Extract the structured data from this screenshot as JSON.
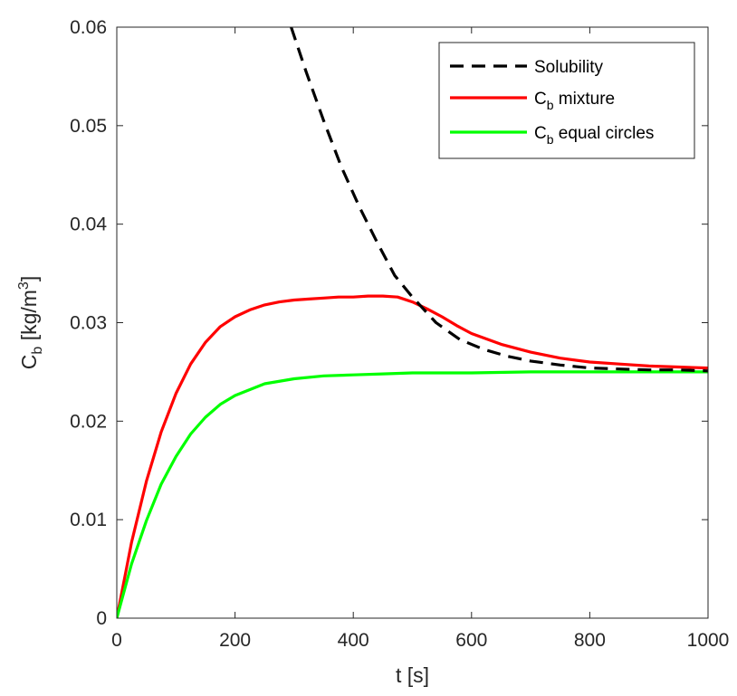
{
  "chart_data": {
    "type": "line",
    "xlabel": "t [s]",
    "ylabel": {
      "main": "C",
      "sub": "b",
      "units_prefix": " [kg/m",
      "sup": "3",
      "units_suffix": "]"
    },
    "xlim": [
      0,
      1000
    ],
    "ylim": [
      0,
      0.06
    ],
    "x_ticks": [
      0,
      200,
      400,
      600,
      800,
      1000
    ],
    "x_tick_labels": [
      "0",
      "200",
      "400",
      "600",
      "800",
      "1000"
    ],
    "y_ticks": [
      0,
      0.01,
      0.02,
      0.03,
      0.04,
      0.05,
      0.06
    ],
    "y_tick_labels": [
      "0",
      "0.01",
      "0.02",
      "0.03",
      "0.04",
      "0.05",
      "0.06"
    ],
    "grid": false,
    "legend_position": "top-right",
    "series": [
      {
        "name": "Solubility",
        "legend": {
          "main": "Solubility",
          "sub": "",
          "rest": ""
        },
        "color": "#000000",
        "dash": "dashed",
        "x": [
          295,
          320,
          350,
          380,
          410,
          440,
          470,
          500,
          540,
          580,
          620,
          660,
          700,
          750,
          800,
          850,
          900,
          950,
          1000
        ],
        "y": [
          0.06,
          0.0555,
          0.0505,
          0.0458,
          0.0418,
          0.0382,
          0.0348,
          0.0326,
          0.03,
          0.0283,
          0.0273,
          0.0266,
          0.0261,
          0.0257,
          0.0254,
          0.0253,
          0.0252,
          0.0252,
          0.0251
        ]
      },
      {
        "name": "C_b mixture",
        "legend": {
          "main": "C",
          "sub": "b",
          "rest": " mixture"
        },
        "color": "#ff0000",
        "dash": "solid",
        "x": [
          0,
          25,
          50,
          75,
          100,
          125,
          150,
          175,
          200,
          225,
          250,
          275,
          300,
          325,
          350,
          375,
          400,
          425,
          450,
          475,
          500,
          525,
          550,
          575,
          600,
          650,
          700,
          750,
          800,
          850,
          900,
          950,
          1000
        ],
        "y": [
          0,
          0.0077,
          0.0139,
          0.0189,
          0.0228,
          0.0258,
          0.028,
          0.0296,
          0.0306,
          0.0313,
          0.0318,
          0.0321,
          0.0323,
          0.0324,
          0.0325,
          0.0326,
          0.0326,
          0.0327,
          0.0327,
          0.0326,
          0.0321,
          0.0314,
          0.0306,
          0.0297,
          0.0289,
          0.0278,
          0.027,
          0.0264,
          0.026,
          0.0258,
          0.0256,
          0.0255,
          0.0254
        ]
      },
      {
        "name": "C_b equal circles",
        "legend": {
          "main": "C",
          "sub": "b",
          "rest": " equal circles"
        },
        "color": "#00ff00",
        "dash": "solid",
        "x": [
          0,
          25,
          50,
          75,
          100,
          125,
          150,
          175,
          200,
          250,
          300,
          350,
          400,
          450,
          500,
          550,
          600,
          700,
          800,
          900,
          1000
        ],
        "y": [
          0,
          0.0055,
          0.0099,
          0.0136,
          0.0164,
          0.0187,
          0.0204,
          0.0217,
          0.0226,
          0.0238,
          0.0243,
          0.0246,
          0.0247,
          0.0248,
          0.0249,
          0.0249,
          0.0249,
          0.025,
          0.025,
          0.025,
          0.025
        ]
      }
    ]
  }
}
